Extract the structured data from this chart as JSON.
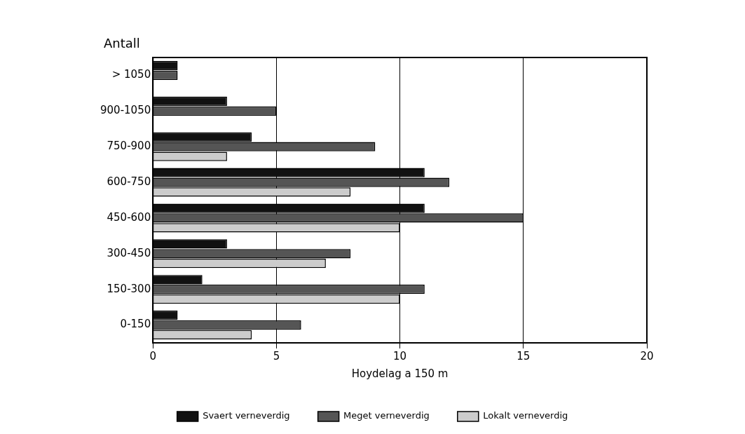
{
  "chart_data": {
    "type": "bar",
    "orientation": "horizontal",
    "ylabel": "Antall",
    "xlabel": "Hoydelag a 150 m",
    "categories": [
      "> 1050",
      "900-1050",
      "750-900",
      "600-750",
      "450-600",
      "300-450",
      "150-300",
      "0-150"
    ],
    "series": [
      {
        "name": "Svaert verneverdig",
        "color": "#111111",
        "values": [
          1,
          3,
          4,
          11,
          11,
          3,
          2,
          1
        ]
      },
      {
        "name": "Meget verneverdig",
        "color": "#555555",
        "values": [
          1,
          5,
          9,
          12,
          15,
          8,
          11,
          6
        ]
      },
      {
        "name": "Lokalt verneverdig",
        "color": "#cccccc",
        "values": [
          null,
          null,
          3,
          8,
          10,
          7,
          10,
          4
        ]
      }
    ],
    "xlim": [
      0,
      20
    ],
    "xticks": [
      0,
      5,
      10,
      15,
      20
    ],
    "grid": "x",
    "legend": "bottom"
  }
}
